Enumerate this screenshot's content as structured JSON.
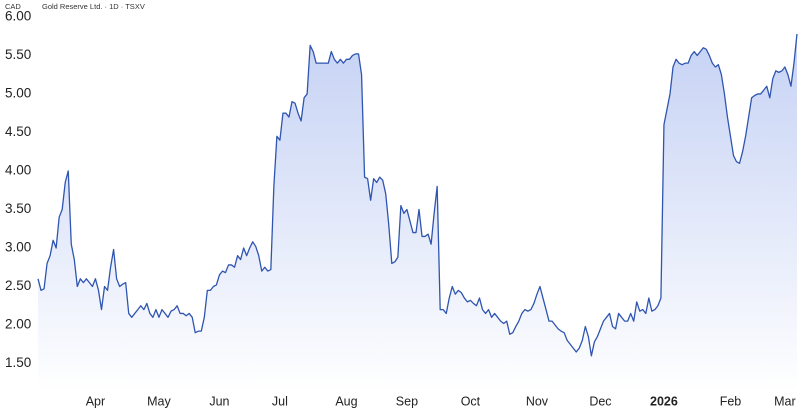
{
  "chart_data": {
    "type": "area",
    "currency": "CAD",
    "title": "Gold Reserve Ltd. · 1D · TSXV",
    "color": "#2f55b0",
    "fill_color": "#c3d0f4",
    "grid": false,
    "ylim": [
      1.13,
      6.22
    ],
    "yticks": [
      {
        "value": 1.5,
        "label": "1.50"
      },
      {
        "value": 2,
        "label": "2.00"
      },
      {
        "value": 2.5,
        "label": "2.50"
      },
      {
        "value": 3,
        "label": "3.00"
      },
      {
        "value": 3.5,
        "label": "3.50"
      },
      {
        "value": 4,
        "label": "4.00"
      },
      {
        "value": 4.5,
        "label": "4.50"
      },
      {
        "value": 5,
        "label": "5.00"
      },
      {
        "value": 5.5,
        "label": "5.50"
      },
      {
        "value": 6,
        "label": "6.00"
      }
    ],
    "xlim": [
      0,
      251
    ],
    "xticks": [
      {
        "value": 19,
        "label": "Apr"
      },
      {
        "value": 40,
        "label": "May"
      },
      {
        "value": 60,
        "label": "Jun"
      },
      {
        "value": 80,
        "label": "Jul"
      },
      {
        "value": 102,
        "label": "Aug"
      },
      {
        "value": 122,
        "label": "Sep"
      },
      {
        "value": 143,
        "label": "Oct"
      },
      {
        "value": 165,
        "label": "Nov"
      },
      {
        "value": 186,
        "label": "Dec"
      },
      {
        "value": 207,
        "label": "2026",
        "bold": true
      },
      {
        "value": 229,
        "label": "Feb"
      },
      {
        "value": 247,
        "label": "Mar"
      }
    ],
    "values": [
      2.6,
      2.45,
      2.47,
      2.8,
      2.9,
      3.1,
      3.0,
      3.4,
      3.5,
      3.85,
      4.0,
      3.05,
      2.85,
      2.5,
      2.6,
      2.55,
      2.6,
      2.55,
      2.5,
      2.6,
      2.45,
      2.2,
      2.5,
      2.45,
      2.75,
      2.98,
      2.6,
      2.5,
      2.53,
      2.55,
      2.15,
      2.1,
      2.15,
      2.2,
      2.25,
      2.2,
      2.28,
      2.15,
      2.1,
      2.2,
      2.1,
      2.2,
      2.15,
      2.1,
      2.18,
      2.2,
      2.25,
      2.15,
      2.15,
      2.12,
      2.15,
      2.1,
      1.9,
      1.92,
      1.92,
      2.1,
      2.45,
      2.45,
      2.5,
      2.52,
      2.65,
      2.7,
      2.68,
      2.78,
      2.78,
      2.75,
      2.9,
      2.85,
      3.0,
      2.9,
      3.0,
      3.08,
      3.02,
      2.9,
      2.7,
      2.75,
      2.7,
      2.72,
      3.8,
      4.45,
      4.4,
      4.75,
      4.75,
      4.7,
      4.9,
      4.88,
      4.75,
      4.65,
      4.95,
      5.0,
      5.63,
      5.55,
      5.4,
      5.4,
      5.4,
      5.4,
      5.4,
      5.55,
      5.45,
      5.4,
      5.45,
      5.4,
      5.45,
      5.45,
      5.5,
      5.52,
      5.52,
      5.25,
      3.92,
      3.9,
      3.62,
      3.9,
      3.85,
      3.92,
      3.88,
      3.7,
      3.3,
      2.8,
      2.82,
      2.88,
      3.55,
      3.45,
      3.5,
      3.35,
      3.2,
      3.2,
      3.5,
      3.15,
      3.15,
      3.18,
      3.05,
      3.45,
      3.8,
      2.2,
      2.2,
      2.15,
      2.35,
      2.5,
      2.4,
      2.45,
      2.42,
      2.35,
      2.3,
      2.32,
      2.28,
      2.25,
      2.35,
      2.2,
      2.15,
      2.2,
      2.1,
      2.15,
      2.1,
      2.05,
      2.02,
      2.05,
      1.88,
      1.9,
      1.98,
      2.05,
      2.15,
      2.2,
      2.18,
      2.2,
      2.28,
      2.4,
      2.5,
      2.35,
      2.2,
      2.05,
      2.05,
      2.0,
      1.95,
      1.92,
      1.9,
      1.8,
      1.75,
      1.7,
      1.65,
      1.7,
      1.8,
      1.98,
      1.85,
      1.6,
      1.78,
      1.85,
      1.95,
      2.05,
      2.1,
      2.15,
      1.98,
      1.95,
      2.15,
      2.1,
      2.05,
      2.05,
      2.15,
      2.05,
      2.3,
      2.18,
      2.2,
      2.15,
      2.35,
      2.18,
      2.2,
      2.25,
      2.35,
      4.6,
      4.8,
      5.0,
      5.35,
      5.45,
      5.4,
      5.38,
      5.4,
      5.4,
      5.5,
      5.55,
      5.5,
      5.55,
      5.6,
      5.58,
      5.5,
      5.4,
      5.35,
      5.38,
      5.25,
      5.0,
      4.7,
      4.45,
      4.2,
      4.12,
      4.1,
      4.25,
      4.45,
      4.7,
      4.95,
      4.98,
      5.0,
      5.0,
      5.05,
      5.1,
      4.95,
      5.2,
      5.3,
      5.28,
      5.3,
      5.35,
      5.25,
      5.1,
      5.4,
      5.78
    ]
  }
}
